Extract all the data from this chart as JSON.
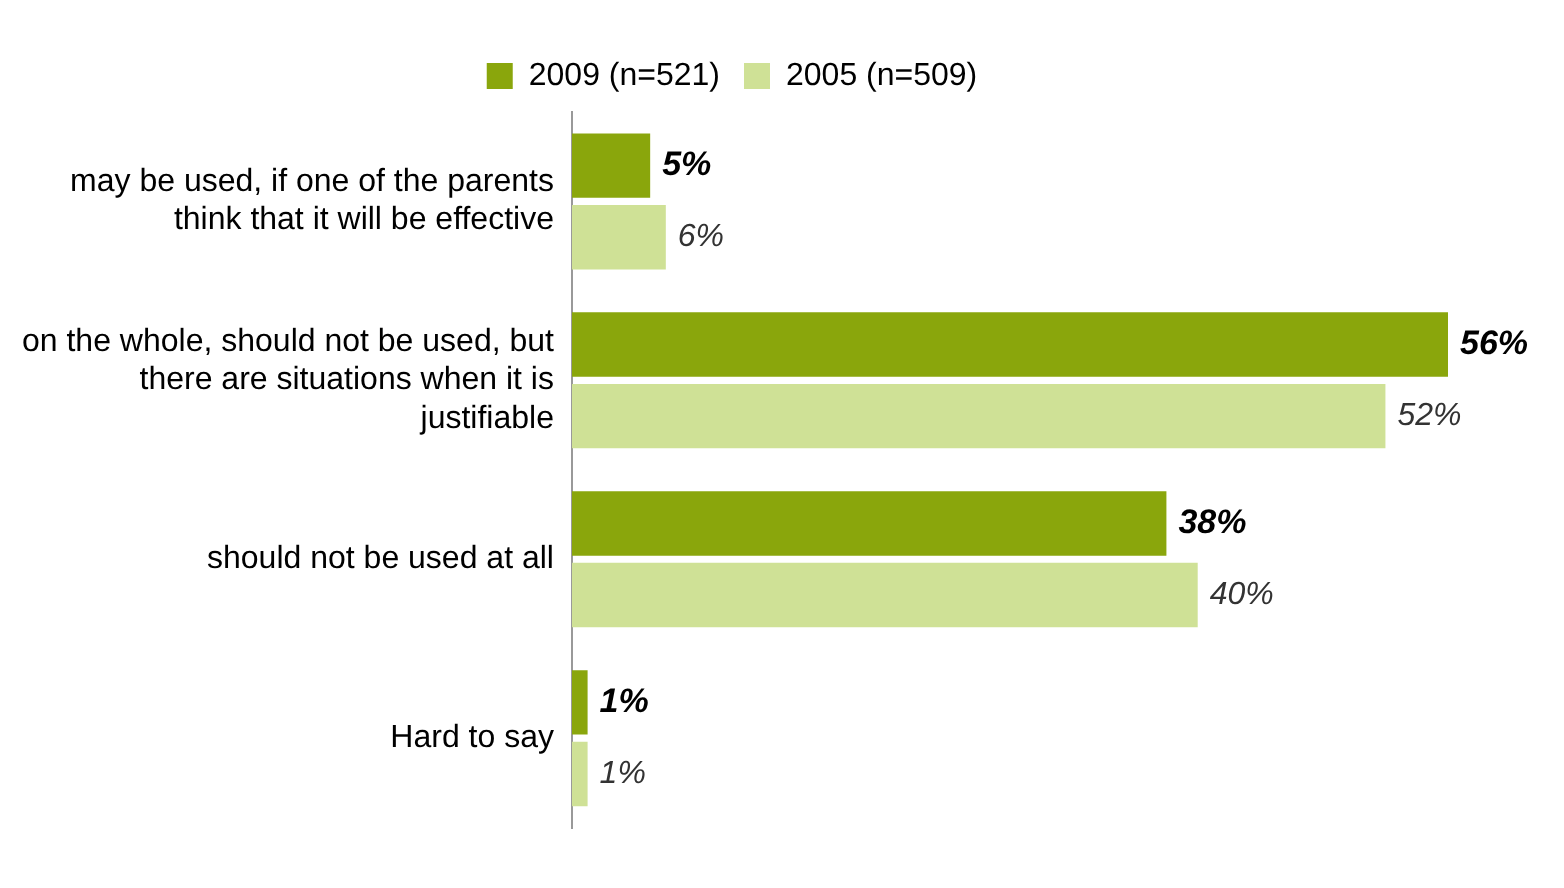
{
  "chart_data": {
    "type": "bar",
    "orientation": "horizontal",
    "legend": "top",
    "categories": [
      "may be used, if one of the parents think that it will be effective",
      "on the whole, should not be used, but there are situations when it is justifiable",
      "should not be used at all",
      "Hard to say"
    ],
    "series": [
      {
        "name": "2009 (n=521)",
        "color": "#8aa60c",
        "values": [
          5,
          56,
          38,
          1
        ],
        "value_labels": [
          "5%",
          "56%",
          "38%",
          "1%"
        ]
      },
      {
        "name": "2005 (n=509)",
        "color": "#cfe196",
        "values": [
          6,
          52,
          40,
          1
        ],
        "value_labels": [
          "6%",
          "52%",
          "40%",
          "1%"
        ]
      }
    ]
  }
}
